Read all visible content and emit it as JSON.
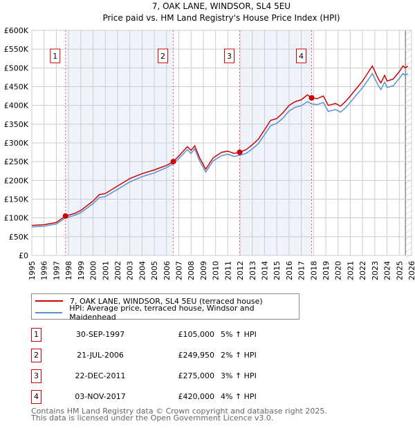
{
  "chart_data": {
    "type": "line",
    "title": "7, OAK LANE, WINDSOR, SL4 5EU",
    "subtitle": "Price paid vs. HM Land Registry's House Price Index (HPI)",
    "xlim": [
      1995,
      2026
    ],
    "ylim": [
      0,
      600000
    ],
    "x_ticks": [
      "1995",
      "1996",
      "1997",
      "1998",
      "1999",
      "2000",
      "2001",
      "2002",
      "2003",
      "2004",
      "2005",
      "2006",
      "2007",
      "2008",
      "2009",
      "2010",
      "2011",
      "2012",
      "2013",
      "2014",
      "2015",
      "2016",
      "2017",
      "2018",
      "2019",
      "2020",
      "2021",
      "2022",
      "2023",
      "2024",
      "2025",
      "2026"
    ],
    "y_ticks": [
      {
        "v": 0,
        "l": "£0"
      },
      {
        "v": 50000,
        "l": "£50K"
      },
      {
        "v": 100000,
        "l": "£100K"
      },
      {
        "v": 150000,
        "l": "£150K"
      },
      {
        "v": 200000,
        "l": "£200K"
      },
      {
        "v": 250000,
        "l": "£250K"
      },
      {
        "v": 300000,
        "l": "£300K"
      },
      {
        "v": 350000,
        "l": "£350K"
      },
      {
        "v": 400000,
        "l": "£400K"
      },
      {
        "v": 450000,
        "l": "£450K"
      },
      {
        "v": 500000,
        "l": "£500K"
      },
      {
        "v": 550000,
        "l": "£550K"
      },
      {
        "v": 600000,
        "l": "£600K"
      }
    ],
    "grid": true,
    "shaded_ranges": [
      [
        1997.75,
        2006.55
      ],
      [
        2011.97,
        2017.84
      ]
    ],
    "future_hatch_from": 2025.5,
    "series": [
      {
        "name": "7, OAK LANE, WINDSOR, SL4 5EU (terraced house)",
        "color": "#cc0000",
        "x": [
          1995,
          1996,
          1997,
          1997.75,
          1998.5,
          1999,
          2000,
          2000.5,
          2001,
          2002,
          2003,
          2004,
          2005,
          2006,
          2006.55,
          2007,
          2007.7,
          2008,
          2008.3,
          2008.7,
          2009.2,
          2009.8,
          2010.5,
          2011,
          2011.5,
          2011.97,
          2012.5,
          2013,
          2013.5,
          2014,
          2014.5,
          2015,
          2015.5,
          2016,
          2016.5,
          2017,
          2017.5,
          2017.84,
          2018.3,
          2018.8,
          2019.2,
          2019.8,
          2020.2,
          2020.6,
          2021,
          2021.5,
          2022,
          2022.5,
          2022.8,
          2023.3,
          2023.5,
          2023.8,
          2024,
          2024.5,
          2025,
          2025.3,
          2025.5,
          2025.7
        ],
        "y": [
          80000,
          82000,
          88000,
          105000,
          112000,
          120000,
          145000,
          162000,
          165000,
          185000,
          205000,
          218000,
          228000,
          240000,
          249950,
          265000,
          290000,
          280000,
          292000,
          260000,
          230000,
          260000,
          275000,
          278000,
          272000,
          275000,
          282000,
          295000,
          310000,
          335000,
          360000,
          365000,
          380000,
          400000,
          410000,
          415000,
          428000,
          420000,
          418000,
          425000,
          400000,
          405000,
          398000,
          410000,
          425000,
          445000,
          465000,
          490000,
          505000,
          470000,
          460000,
          480000,
          465000,
          470000,
          490000,
          505000,
          500000,
          505000
        ]
      },
      {
        "name": "HPI: Average price, terraced house, Windsor and Maidenhead",
        "color": "#5b8fd4",
        "x": [
          1995,
          1996,
          1997,
          1997.75,
          1998.5,
          1999,
          2000,
          2000.5,
          2001,
          2002,
          2003,
          2004,
          2005,
          2006,
          2006.55,
          2007,
          2007.7,
          2008,
          2008.3,
          2008.7,
          2009.2,
          2009.8,
          2010.5,
          2011,
          2011.5,
          2011.97,
          2012.5,
          2013,
          2013.5,
          2014,
          2014.5,
          2015,
          2015.5,
          2016,
          2016.5,
          2017,
          2017.5,
          2017.84,
          2018.3,
          2018.8,
          2019.2,
          2019.8,
          2020.2,
          2020.6,
          2021,
          2021.5,
          2022,
          2022.5,
          2022.8,
          2023.3,
          2023.5,
          2023.8,
          2024,
          2024.5,
          2025,
          2025.3,
          2025.5,
          2025.7
        ],
        "y": [
          76000,
          78000,
          84000,
          100000,
          107000,
          114000,
          138000,
          154000,
          157000,
          176000,
          196000,
          210000,
          220000,
          234000,
          245000,
          258000,
          282000,
          272000,
          284000,
          252000,
          222000,
          252000,
          266000,
          270000,
          264000,
          267000,
          272000,
          284000,
          298000,
          322000,
          346000,
          352000,
          366000,
          385000,
          395000,
          399000,
          410000,
          404000,
          402000,
          408000,
          384000,
          389000,
          382000,
          393000,
          408000,
          428000,
          447000,
          470000,
          485000,
          452000,
          442000,
          462000,
          448000,
          452000,
          472000,
          485000,
          480000,
          485000
        ]
      }
    ],
    "sales": [
      {
        "n": "1",
        "x": 1997.75,
        "y": 105000
      },
      {
        "n": "2",
        "x": 2006.55,
        "y": 249950
      },
      {
        "n": "3",
        "x": 2011.97,
        "y": 275000
      },
      {
        "n": "4",
        "x": 2017.84,
        "y": 420000
      }
    ]
  },
  "legend": {
    "property": "7, OAK LANE, WINDSOR, SL4 5EU (terraced house)",
    "hpi": "HPI: Average price, terraced house, Windsor and Maidenhead"
  },
  "transactions": [
    {
      "n": "1",
      "date": "30-SEP-1997",
      "price": "£105,000",
      "delta": "5% ↑ HPI"
    },
    {
      "n": "2",
      "date": "21-JUL-2006",
      "price": "£249,950",
      "delta": "2% ↑ HPI"
    },
    {
      "n": "3",
      "date": "22-DEC-2011",
      "price": "£275,000",
      "delta": "3% ↑ HPI"
    },
    {
      "n": "4",
      "date": "03-NOV-2017",
      "price": "£420,000",
      "delta": "4% ↑ HPI"
    }
  ],
  "footer": {
    "line1": "Contains HM Land Registry data © Crown copyright and database right 2025.",
    "line2": "This data is licensed under the Open Government Licence v3.0."
  },
  "colors": {
    "property": "#cc0000",
    "hpi": "#5b8fd4",
    "shade": "#eef3fc"
  }
}
